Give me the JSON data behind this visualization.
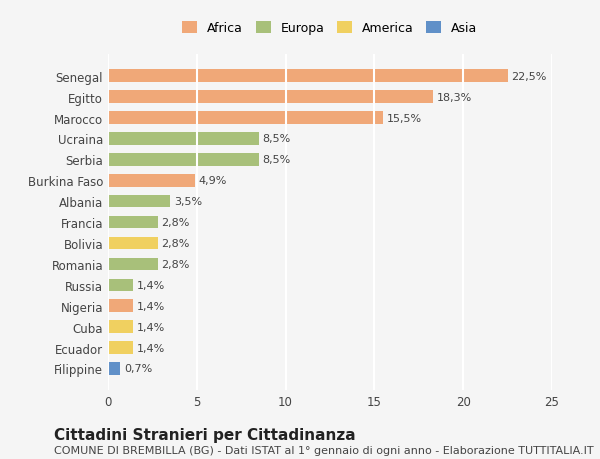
{
  "countries": [
    "Senegal",
    "Egitto",
    "Marocco",
    "Ucraina",
    "Serbia",
    "Burkina Faso",
    "Albania",
    "Francia",
    "Bolivia",
    "Romania",
    "Russia",
    "Nigeria",
    "Cuba",
    "Ecuador",
    "Filippine"
  ],
  "values": [
    22.5,
    18.3,
    15.5,
    8.5,
    8.5,
    4.9,
    3.5,
    2.8,
    2.8,
    2.8,
    1.4,
    1.4,
    1.4,
    1.4,
    0.7
  ],
  "labels": [
    "22,5%",
    "18,3%",
    "15,5%",
    "8,5%",
    "8,5%",
    "4,9%",
    "3,5%",
    "2,8%",
    "2,8%",
    "2,8%",
    "1,4%",
    "1,4%",
    "1,4%",
    "1,4%",
    "0,7%"
  ],
  "continents": [
    "Africa",
    "Africa",
    "Africa",
    "Europa",
    "Europa",
    "Africa",
    "Europa",
    "Europa",
    "America",
    "Europa",
    "Europa",
    "Africa",
    "America",
    "America",
    "Asia"
  ],
  "colors": {
    "Africa": "#F0A878",
    "Europa": "#A8C07A",
    "America": "#F0D060",
    "Asia": "#6090C8"
  },
  "legend_colors": {
    "Africa": "#F0A878",
    "Europa": "#A8C07A",
    "America": "#F0D060",
    "Asia": "#6090C8"
  },
  "title": "Cittadini Stranieri per Cittadinanza",
  "subtitle": "COMUNE DI BREMBILLA (BG) - Dati ISTAT al 1° gennaio di ogni anno - Elaborazione TUTTITALIA.IT",
  "xlim": [
    0,
    25
  ],
  "xticks": [
    0,
    5,
    10,
    15,
    20,
    25
  ],
  "background_color": "#f5f5f5",
  "plot_background": "#f5f5f5",
  "grid_color": "#ffffff",
  "bar_height": 0.6,
  "title_fontsize": 11,
  "subtitle_fontsize": 8,
  "label_fontsize": 8,
  "tick_fontsize": 8.5
}
